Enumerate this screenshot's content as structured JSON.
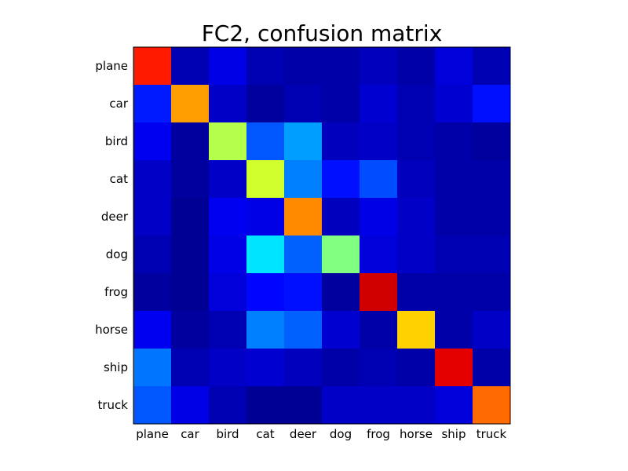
{
  "chart_data": {
    "type": "heatmap",
    "title": "FC2, confusion matrix",
    "xlabel": "",
    "ylabel": "",
    "x_categories": [
      "plane",
      "car",
      "bird",
      "cat",
      "deer",
      "dog",
      "frog",
      "horse",
      "ship",
      "truck"
    ],
    "y_categories": [
      "plane",
      "car",
      "bird",
      "cat",
      "deer",
      "dog",
      "frog",
      "horse",
      "ship",
      "truck"
    ],
    "colormap": "jet",
    "value_range": [
      0,
      1
    ],
    "grid": false,
    "legend": "none",
    "matrix": [
      [
        0.85,
        0.05,
        0.1,
        0.05,
        0.04,
        0.04,
        0.06,
        0.04,
        0.09,
        0.05
      ],
      [
        0.15,
        0.72,
        0.07,
        0.03,
        0.05,
        0.04,
        0.08,
        0.05,
        0.08,
        0.14
      ],
      [
        0.11,
        0.03,
        0.55,
        0.21,
        0.28,
        0.06,
        0.07,
        0.05,
        0.04,
        0.03
      ],
      [
        0.07,
        0.03,
        0.07,
        0.58,
        0.25,
        0.14,
        0.2,
        0.06,
        0.04,
        0.04
      ],
      [
        0.07,
        0.02,
        0.11,
        0.1,
        0.74,
        0.06,
        0.1,
        0.07,
        0.04,
        0.04
      ],
      [
        0.05,
        0.02,
        0.1,
        0.35,
        0.22,
        0.5,
        0.09,
        0.07,
        0.05,
        0.05
      ],
      [
        0.03,
        0.02,
        0.09,
        0.13,
        0.14,
        0.03,
        0.92,
        0.04,
        0.04,
        0.04
      ],
      [
        0.11,
        0.03,
        0.05,
        0.25,
        0.22,
        0.08,
        0.04,
        0.67,
        0.04,
        0.07
      ],
      [
        0.24,
        0.05,
        0.07,
        0.08,
        0.06,
        0.04,
        0.05,
        0.04,
        0.9,
        0.04
      ],
      [
        0.21,
        0.1,
        0.05,
        0.02,
        0.02,
        0.07,
        0.07,
        0.07,
        0.09,
        0.77
      ]
    ]
  }
}
